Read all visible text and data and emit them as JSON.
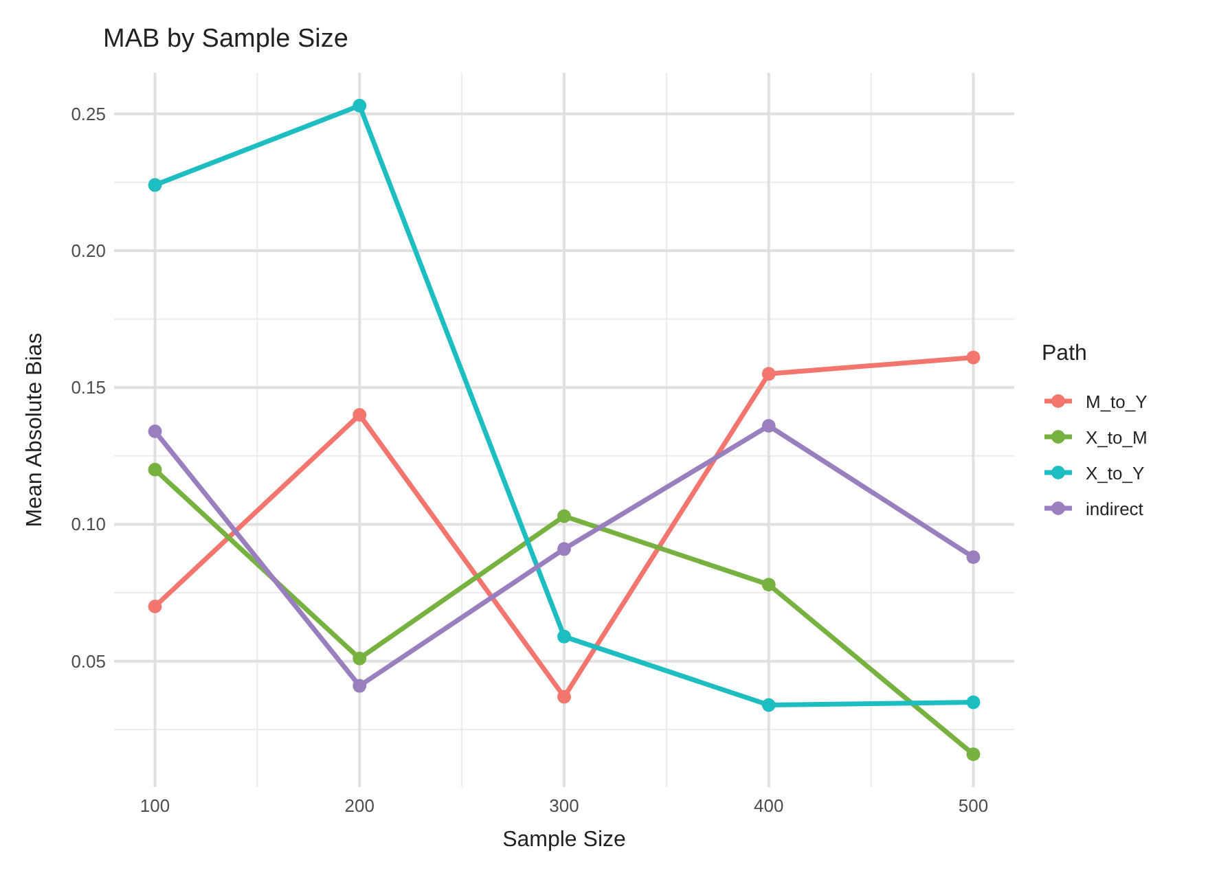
{
  "chart_data": {
    "type": "line",
    "title": "MAB by Sample Size",
    "xlabel": "Sample Size",
    "ylabel": "Mean Absolute Bias",
    "legend_title": "Path",
    "x": [
      100,
      200,
      300,
      400,
      500
    ],
    "series": [
      {
        "name": "M_to_Y",
        "color": "#f3766e",
        "values": [
          0.07,
          0.14,
          0.037,
          0.155,
          0.161
        ]
      },
      {
        "name": "X_to_M",
        "color": "#77b140",
        "values": [
          0.12,
          0.051,
          0.103,
          0.078,
          0.016
        ]
      },
      {
        "name": "X_to_Y",
        "color": "#1ebdc1",
        "values": [
          0.224,
          0.253,
          0.059,
          0.034,
          0.035
        ]
      },
      {
        "name": "indirect",
        "color": "#9a7fbf",
        "values": [
          0.134,
          0.041,
          0.091,
          0.136,
          0.088
        ]
      }
    ],
    "xlim": [
      80,
      520
    ],
    "xticks": [
      100,
      200,
      300,
      400,
      500
    ],
    "ylim": [
      0.004,
      0.265
    ],
    "yticks": [
      {
        "value": 0.05,
        "label": "0.05"
      },
      {
        "value": 0.1,
        "label": "0.10"
      },
      {
        "value": 0.15,
        "label": "0.15"
      },
      {
        "value": 0.2,
        "label": "0.20"
      },
      {
        "value": 0.25,
        "label": "0.25"
      }
    ],
    "grid": true,
    "legend": "right",
    "marker": "circle",
    "line_style": "solid"
  }
}
